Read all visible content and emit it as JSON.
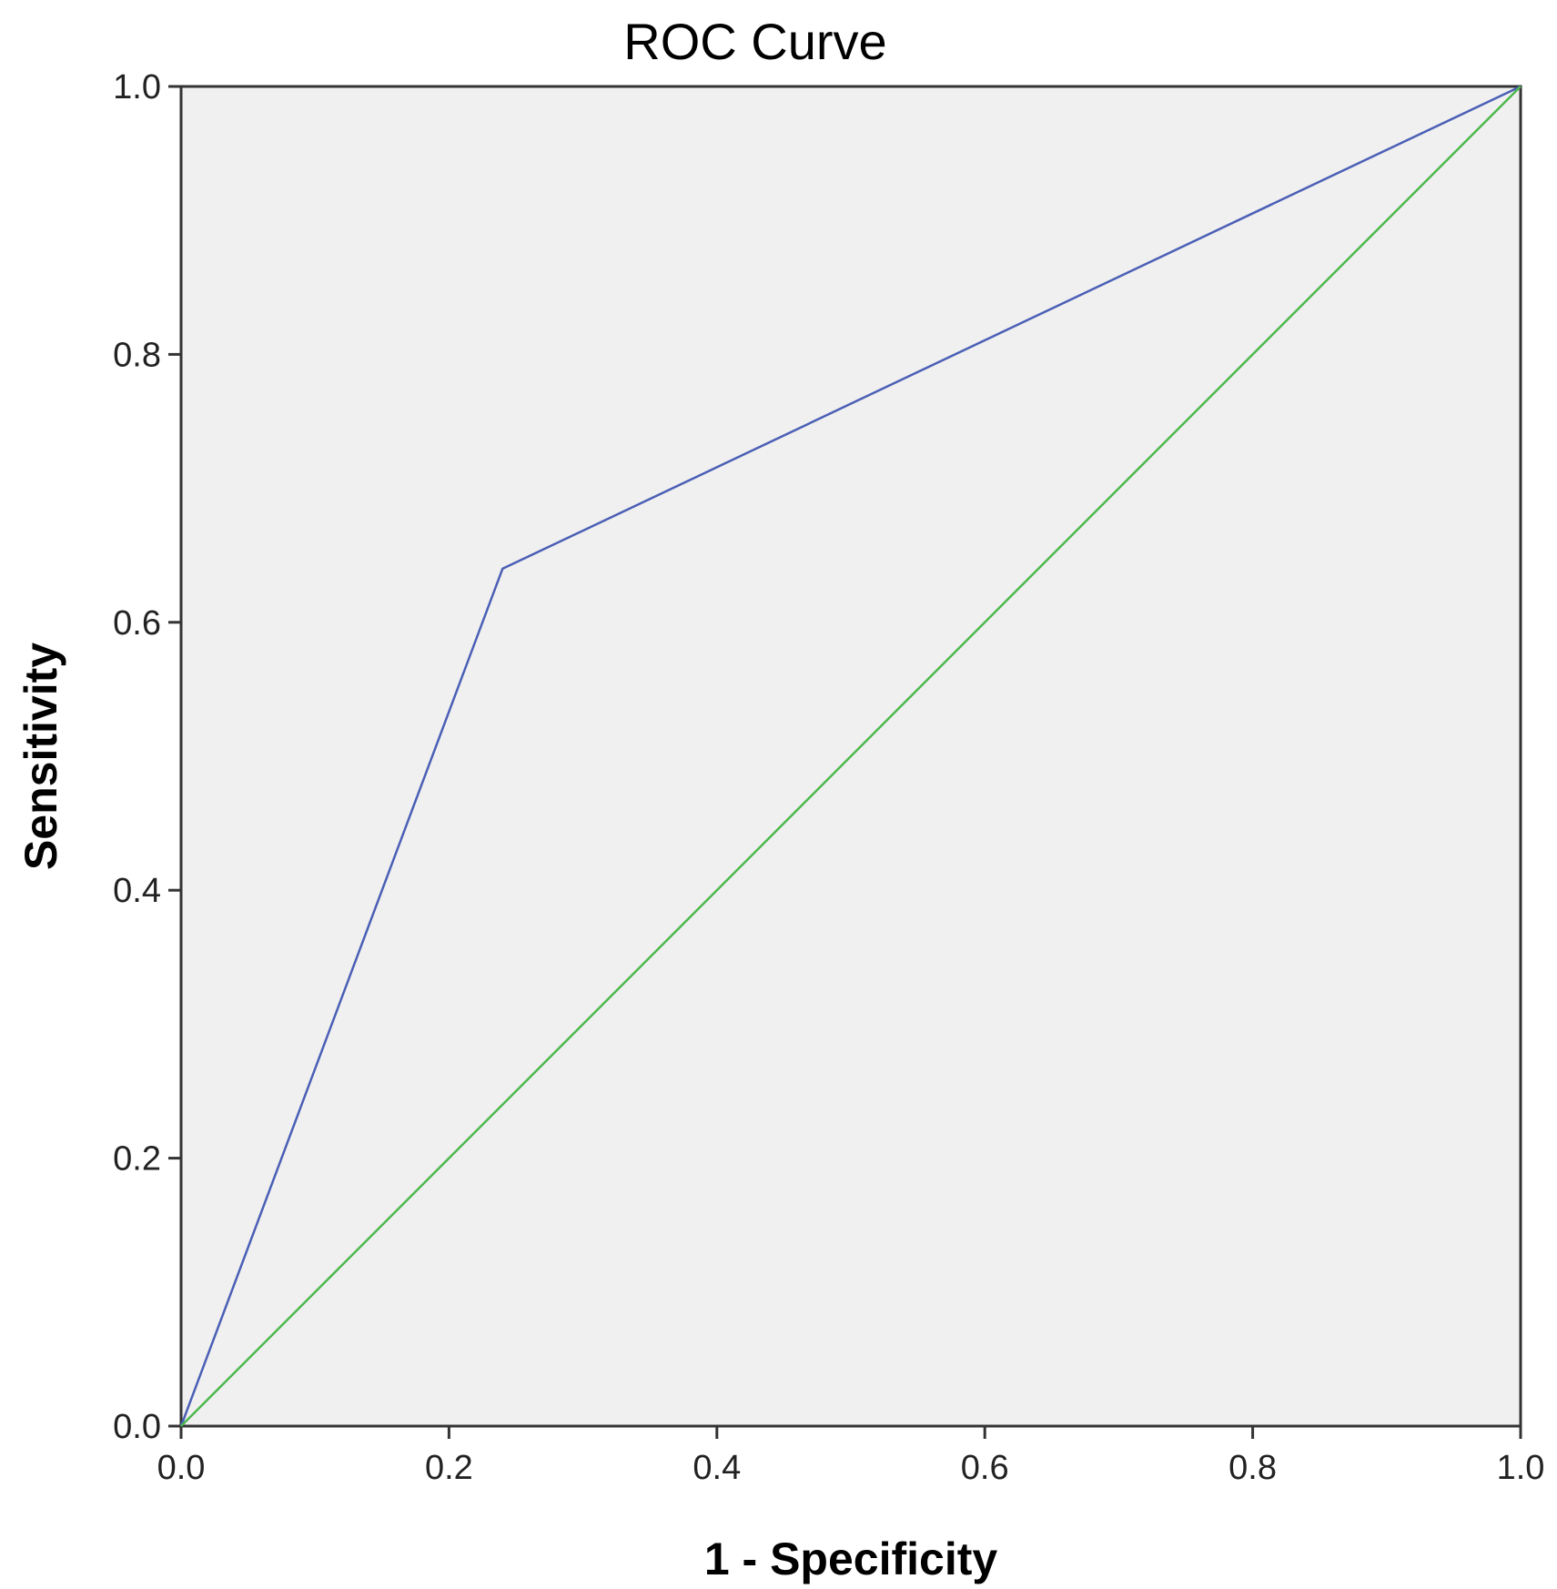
{
  "chart_data": {
    "type": "line",
    "title": "ROC Curve",
    "xlabel": "1 - Specificity",
    "ylabel": "Sensitivity",
    "xlim": [
      0.0,
      1.0
    ],
    "ylim": [
      0.0,
      1.0
    ],
    "x_ticks": [
      "0.0",
      "0.2",
      "0.4",
      "0.6",
      "0.8",
      "1.0"
    ],
    "y_ticks": [
      "0.0",
      "0.2",
      "0.4",
      "0.6",
      "0.8",
      "1.0"
    ],
    "grid": false,
    "legend": "none",
    "plot_background": "#f0f0f0",
    "series": [
      {
        "color": "#4a5fb5",
        "points": [
          [
            0.0,
            0.0
          ],
          [
            0.24,
            0.64
          ],
          [
            1.0,
            1.0
          ]
        ]
      },
      {
        "color": "#4cb84c",
        "points": [
          [
            0.0,
            0.0
          ],
          [
            1.0,
            1.0
          ]
        ]
      }
    ]
  }
}
